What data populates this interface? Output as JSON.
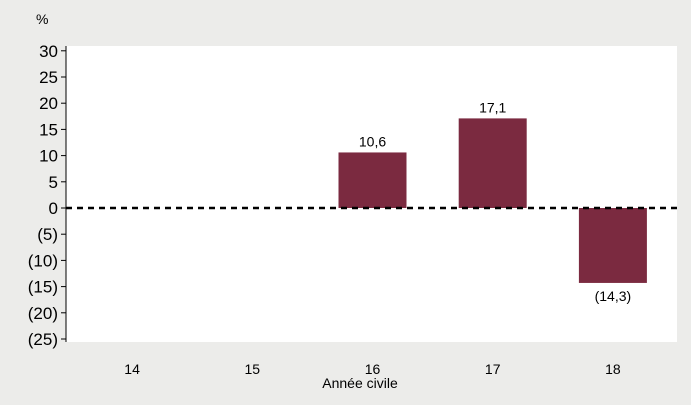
{
  "chart_data": {
    "type": "bar",
    "categories": [
      "14",
      "15",
      "16",
      "17",
      "18"
    ],
    "values": [
      null,
      null,
      10.6,
      17.1,
      -14.3
    ],
    "data_labels": [
      "",
      "",
      "10,6",
      "17,1",
      "(14,3)"
    ],
    "xlabel": "Année civile",
    "ylabel": "%",
    "ylim": [
      -25,
      30
    ],
    "yticks": [
      30,
      25,
      20,
      15,
      10,
      5,
      0,
      -5,
      -10,
      -15,
      -20,
      -25
    ],
    "ytick_labels": [
      "30",
      "25",
      "20",
      "15",
      "10",
      "5",
      "0",
      "(5)",
      "(10)",
      "(15)",
      "(20)",
      "(25)"
    ],
    "zero_line": "dashed",
    "grid": false,
    "bar_color": "#7b2a40",
    "plot_background": "#ffffff",
    "page_background": "#ececea"
  }
}
